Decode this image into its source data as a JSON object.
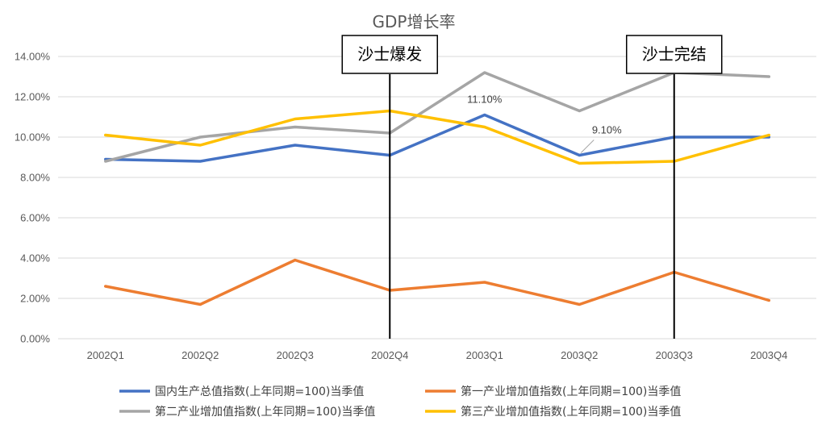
{
  "chart_data": {
    "type": "line",
    "title": "GDP增长率",
    "categories": [
      "2002Q1",
      "2002Q2",
      "2002Q3",
      "2002Q4",
      "2003Q1",
      "2003Q2",
      "2003Q3",
      "2003Q4"
    ],
    "ylim": [
      0,
      14
    ],
    "yticks": [
      0,
      2,
      4,
      6,
      8,
      10,
      12,
      14
    ],
    "ytick_labels": [
      "0.00%",
      "2.00%",
      "4.00%",
      "6.00%",
      "8.00%",
      "10.00%",
      "12.00%",
      "14.00%"
    ],
    "grid": true,
    "legend_position": "bottom",
    "series": [
      {
        "name": "国内生产总值指数(上年同期=100)当季值",
        "color": "#4472C4",
        "values": [
          8.9,
          8.8,
          9.6,
          9.1,
          11.1,
          9.1,
          10.0,
          10.0
        ]
      },
      {
        "name": "第一产业增加值指数(上年同期=100)当季值",
        "color": "#ED7D31",
        "values": [
          2.6,
          1.7,
          3.9,
          2.4,
          2.8,
          1.7,
          3.3,
          1.9
        ]
      },
      {
        "name": "第二产业增加值指数(上年同期=100)当季值",
        "color": "#A5A5A5",
        "values": [
          8.8,
          10.0,
          10.5,
          10.2,
          13.2,
          11.3,
          13.2,
          13.0
        ]
      },
      {
        "name": "第三产业增加值指数(上年同期=100)当季值",
        "color": "#FFC000",
        "values": [
          10.1,
          9.6,
          10.9,
          11.3,
          10.5,
          8.7,
          8.8,
          10.1
        ]
      }
    ],
    "data_labels": [
      {
        "series": 0,
        "index": 4,
        "text": "11.10%"
      },
      {
        "series": 0,
        "index": 5,
        "text": "9.10%"
      }
    ],
    "annotations": [
      {
        "category": "2002Q4",
        "text": "沙士爆发"
      },
      {
        "category": "2003Q3",
        "text": "沙士完结"
      }
    ]
  }
}
